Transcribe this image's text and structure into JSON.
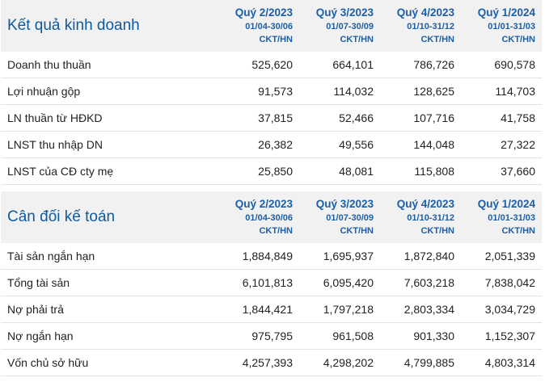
{
  "sections": [
    {
      "title": "Kết quả kinh doanh",
      "periods": [
        {
          "quarter": "Quý 2/2023",
          "dates": "01/04-30/06",
          "unit": "CKT/HN"
        },
        {
          "quarter": "Quý 3/2023",
          "dates": "01/07-30/09",
          "unit": "CKT/HN"
        },
        {
          "quarter": "Quý 4/2023",
          "dates": "01/10-31/12",
          "unit": "CKT/HN"
        },
        {
          "quarter": "Quý 1/2024",
          "dates": "01/01-31/03",
          "unit": "CKT/HN"
        }
      ],
      "rows": [
        {
          "label": "Doanh thu thuần",
          "values": [
            "525,620",
            "664,101",
            "786,726",
            "690,578"
          ]
        },
        {
          "label": "Lợi nhuận gộp",
          "values": [
            "91,573",
            "114,032",
            "128,625",
            "114,703"
          ]
        },
        {
          "label": "LN thuần từ HĐKD",
          "values": [
            "37,815",
            "52,466",
            "107,716",
            "41,758"
          ]
        },
        {
          "label": "LNST thu nhập DN",
          "values": [
            "26,382",
            "49,556",
            "144,048",
            "27,322"
          ]
        },
        {
          "label": "LNST của CĐ cty mẹ",
          "values": [
            "25,850",
            "48,081",
            "115,808",
            "37,660"
          ]
        }
      ]
    },
    {
      "title": "Cân đối kế toán",
      "periods": [
        {
          "quarter": "Quý 2/2023",
          "dates": "01/04-30/06",
          "unit": "CKT/HN"
        },
        {
          "quarter": "Quý 3/2023",
          "dates": "01/07-30/09",
          "unit": "CKT/HN"
        },
        {
          "quarter": "Quý 4/2023",
          "dates": "01/10-31/12",
          "unit": "CKT/HN"
        },
        {
          "quarter": "Quý 1/2024",
          "dates": "01/01-31/03",
          "unit": "CKT/HN"
        }
      ],
      "rows": [
        {
          "label": "Tài sản ngắn hạn",
          "values": [
            "1,884,849",
            "1,695,937",
            "1,872,840",
            "2,051,339"
          ]
        },
        {
          "label": "Tổng tài sản",
          "values": [
            "6,101,813",
            "6,095,420",
            "7,603,218",
            "7,838,042"
          ]
        },
        {
          "label": "Nợ phải trả",
          "values": [
            "1,844,421",
            "1,797,218",
            "2,803,334",
            "3,034,729"
          ]
        },
        {
          "label": "Nợ ngắn hạn",
          "values": [
            "975,795",
            "961,508",
            "901,330",
            "1,152,307"
          ]
        },
        {
          "label": "Vốn chủ sở hữu",
          "values": [
            "4,257,393",
            "4,298,202",
            "4,799,885",
            "4,803,314"
          ]
        }
      ]
    }
  ]
}
